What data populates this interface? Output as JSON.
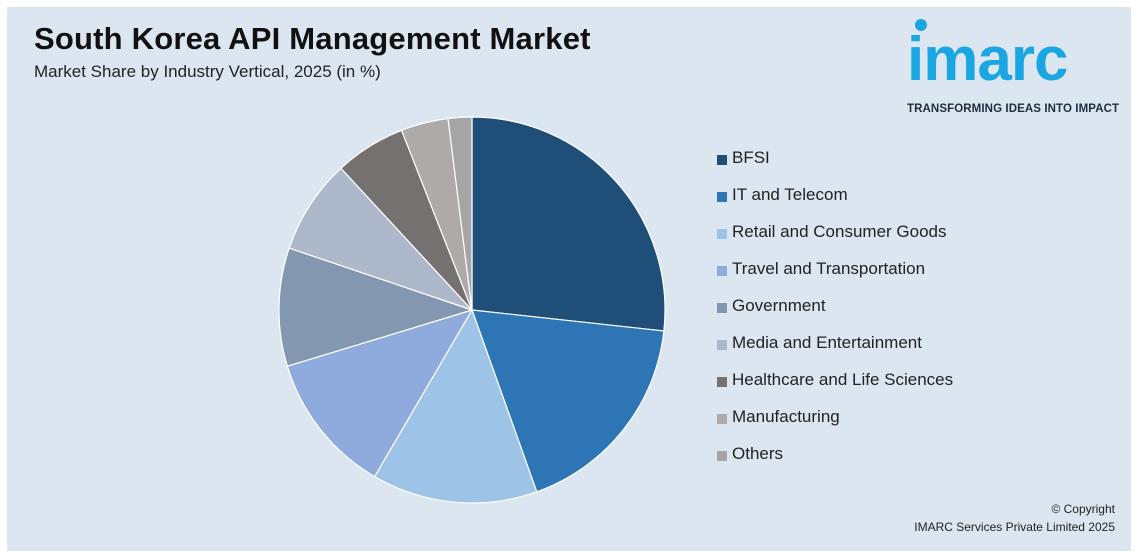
{
  "header": {
    "title": "South Korea API Management Market",
    "subtitle": "Market Share by Industry Vertical, 2025 (in %)"
  },
  "logo": {
    "wordmark": "imarc",
    "tagline": "TRANSFORMING IDEAS INTO IMPACT",
    "color": "#1aa7e1"
  },
  "chart_data": {
    "type": "pie",
    "title": "South Korea API Management Market",
    "subtitle": "Market Share by Industry Vertical, 2025 (in %)",
    "legend_position": "right",
    "slices": [
      {
        "label": "BFSI",
        "value": 27,
        "color": "#1f4e79"
      },
      {
        "label": "IT and Telecom",
        "value": 18,
        "color": "#2e75b6"
      },
      {
        "label": "Retail and Consumer Goods",
        "value": 14,
        "color": "#9dc3e6"
      },
      {
        "label": "Travel and Transportation",
        "value": 12,
        "color": "#8faadc"
      },
      {
        "label": "Government",
        "value": 10,
        "color": "#8497b0"
      },
      {
        "label": "Media and Entertainment",
        "value": 8,
        "color": "#adb9ca"
      },
      {
        "label": "Healthcare and Life Sciences",
        "value": 6,
        "color": "#767171"
      },
      {
        "label": "Manufacturing",
        "value": 4,
        "color": "#aeaaaa"
      },
      {
        "label": "Others",
        "value": 2,
        "color": "#a5a5a5"
      }
    ]
  },
  "footer": {
    "copyright_line1": "© Copyright",
    "copyright_line2": "IMARC Services Private Limited 2025"
  }
}
